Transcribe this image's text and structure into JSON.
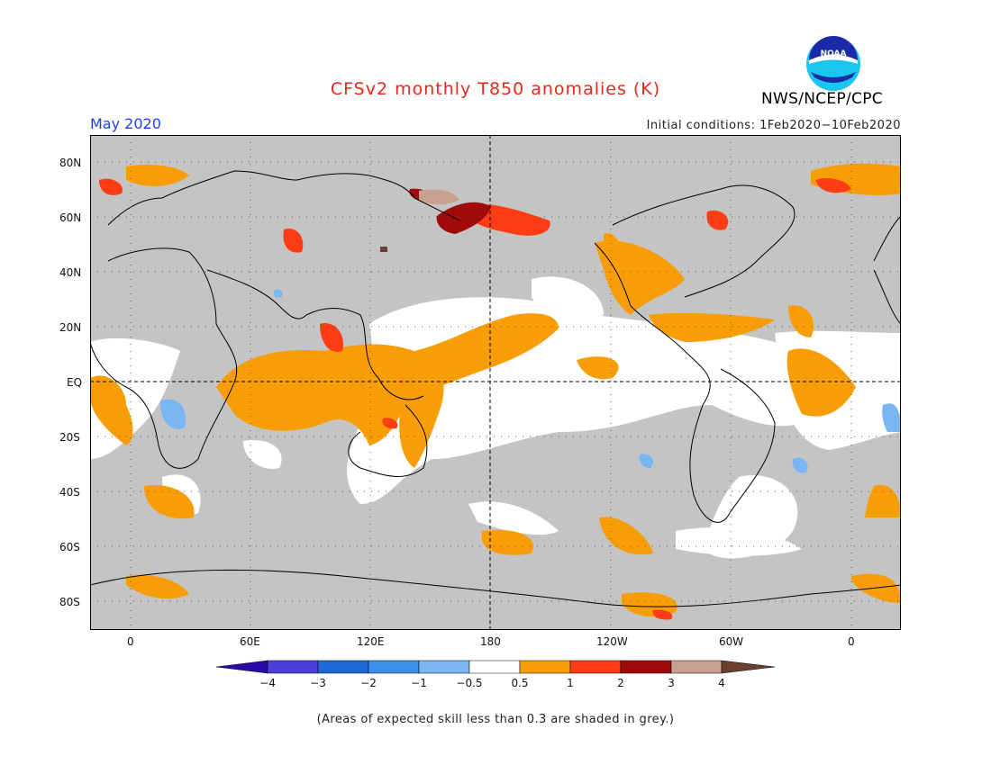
{
  "header": {
    "title": "CFSv2 monthly T850 anomalies (K)",
    "month": "May 2020",
    "initial_conditions": "Initial conditions: 1Feb2020−10Feb2020",
    "agency": "NWS/NCEP/CPC",
    "logo_text": "NOAA"
  },
  "axes": {
    "lat_labels": [
      "80N",
      "60N",
      "40N",
      "20N",
      "EQ",
      "20S",
      "40S",
      "60S",
      "80S"
    ],
    "lon_labels": [
      "0",
      "60E",
      "120E",
      "180",
      "120W",
      "60W",
      "0"
    ]
  },
  "legend": {
    "labels": [
      "−4",
      "−3",
      "−2",
      "−1",
      "−0.5",
      "0.5",
      "1",
      "2",
      "3",
      "4"
    ],
    "colors": [
      "#2a0aa8",
      "#4a40d8",
      "#1c6ad6",
      "#3c90ee",
      "#78b6f4",
      "#ffffff",
      "#f99d06",
      "#ff3c14",
      "#a00a0a",
      "#c8a090",
      "#6c4030"
    ],
    "grey_color": "#c4c4c4"
  },
  "footnote": "(Areas of expected skill less than 0.3 are shaded in grey.)"
}
